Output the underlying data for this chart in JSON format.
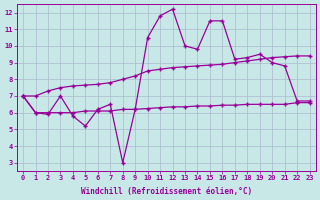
{
  "x_values": [
    0,
    1,
    2,
    3,
    4,
    5,
    6,
    7,
    8,
    9,
    10,
    11,
    12,
    13,
    14,
    15,
    16,
    17,
    18,
    19,
    20,
    21,
    22,
    23
  ],
  "line_main": [
    7.0,
    6.0,
    5.9,
    7.0,
    5.8,
    5.2,
    6.2,
    6.5,
    3.0,
    6.2,
    10.5,
    11.8,
    12.2,
    10.0,
    9.8,
    11.5,
    11.5,
    9.2,
    9.3,
    9.5,
    9.0,
    8.8,
    6.7,
    6.7
  ],
  "line_upper": [
    7.0,
    7.0,
    7.3,
    7.5,
    7.6,
    7.65,
    7.7,
    7.8,
    8.0,
    8.2,
    8.5,
    8.6,
    8.7,
    8.75,
    8.8,
    8.85,
    8.9,
    9.0,
    9.1,
    9.2,
    9.3,
    9.35,
    9.4,
    9.4
  ],
  "line_lower": [
    7.0,
    6.0,
    6.0,
    6.0,
    6.0,
    6.1,
    6.1,
    6.1,
    6.2,
    6.2,
    6.25,
    6.3,
    6.35,
    6.35,
    6.4,
    6.4,
    6.45,
    6.45,
    6.5,
    6.5,
    6.5,
    6.5,
    6.6,
    6.6
  ],
  "xlabel": "Windchill (Refroidissement éolien,°C)",
  "ylim": [
    2.5,
    12.5
  ],
  "xlim": [
    -0.5,
    23.5
  ],
  "yticks": [
    3,
    4,
    5,
    6,
    7,
    8,
    9,
    10,
    11,
    12
  ],
  "xticks": [
    0,
    1,
    2,
    3,
    4,
    5,
    6,
    7,
    8,
    9,
    10,
    11,
    12,
    13,
    14,
    15,
    16,
    17,
    18,
    19,
    20,
    21,
    22,
    23
  ],
  "line_color": "#990099",
  "bg_color": "#c8e8e8",
  "grid_color": "#aabbcc",
  "marker": "+"
}
